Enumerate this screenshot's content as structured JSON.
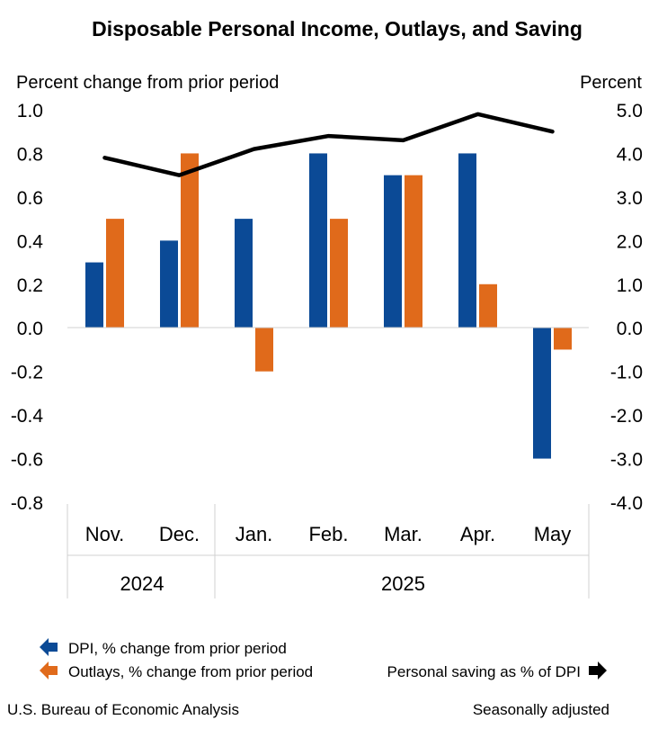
{
  "chart_data": {
    "type": "bar",
    "title": "Disposable Personal Income, Outlays, and Saving",
    "left_axis_label": "Percent change from prior period",
    "right_axis_label": "Percent",
    "left_ylim": [
      -0.8,
      1.0
    ],
    "left_ticks": [
      "1.0",
      "0.8",
      "0.6",
      "0.4",
      "0.2",
      "0.0",
      "-0.2",
      "-0.4",
      "-0.6",
      "-0.8"
    ],
    "right_ylim": [
      -4.0,
      5.0
    ],
    "right_ticks": [
      "5.0",
      "4.0",
      "3.0",
      "2.0",
      "1.0",
      "0.0",
      "-1.0",
      "-2.0",
      "-3.0",
      "-4.0"
    ],
    "categories": [
      "Nov.",
      "Dec.",
      "Jan.",
      "Feb.",
      "Mar.",
      "Apr.",
      "May"
    ],
    "year_groups": [
      {
        "label": "2024",
        "count": 2
      },
      {
        "label": "2025",
        "count": 5
      }
    ],
    "series": [
      {
        "name": "DPI, % change from prior period",
        "type": "bar",
        "axis": "left",
        "color": "#0b4a96",
        "values": [
          0.3,
          0.4,
          0.5,
          0.8,
          0.7,
          0.8,
          -0.6
        ]
      },
      {
        "name": "Outlays, % change from prior period",
        "type": "bar",
        "axis": "left",
        "color": "#e06a1b",
        "values": [
          0.5,
          0.8,
          -0.2,
          0.5,
          0.7,
          0.2,
          -0.1
        ]
      },
      {
        "name": "Personal saving as % of DPI",
        "type": "line",
        "axis": "right",
        "color": "#000000",
        "values": [
          3.9,
          3.5,
          4.1,
          4.4,
          4.3,
          4.9,
          4.5
        ]
      }
    ],
    "grid": false
  },
  "legend": {
    "dpi": "DPI, % change from prior period",
    "outlays": "Outlays, % change from prior period",
    "saving": "Personal saving as % of DPI"
  },
  "footer": {
    "source": "U.S. Bureau of Economic Analysis",
    "note": "Seasonally adjusted"
  }
}
